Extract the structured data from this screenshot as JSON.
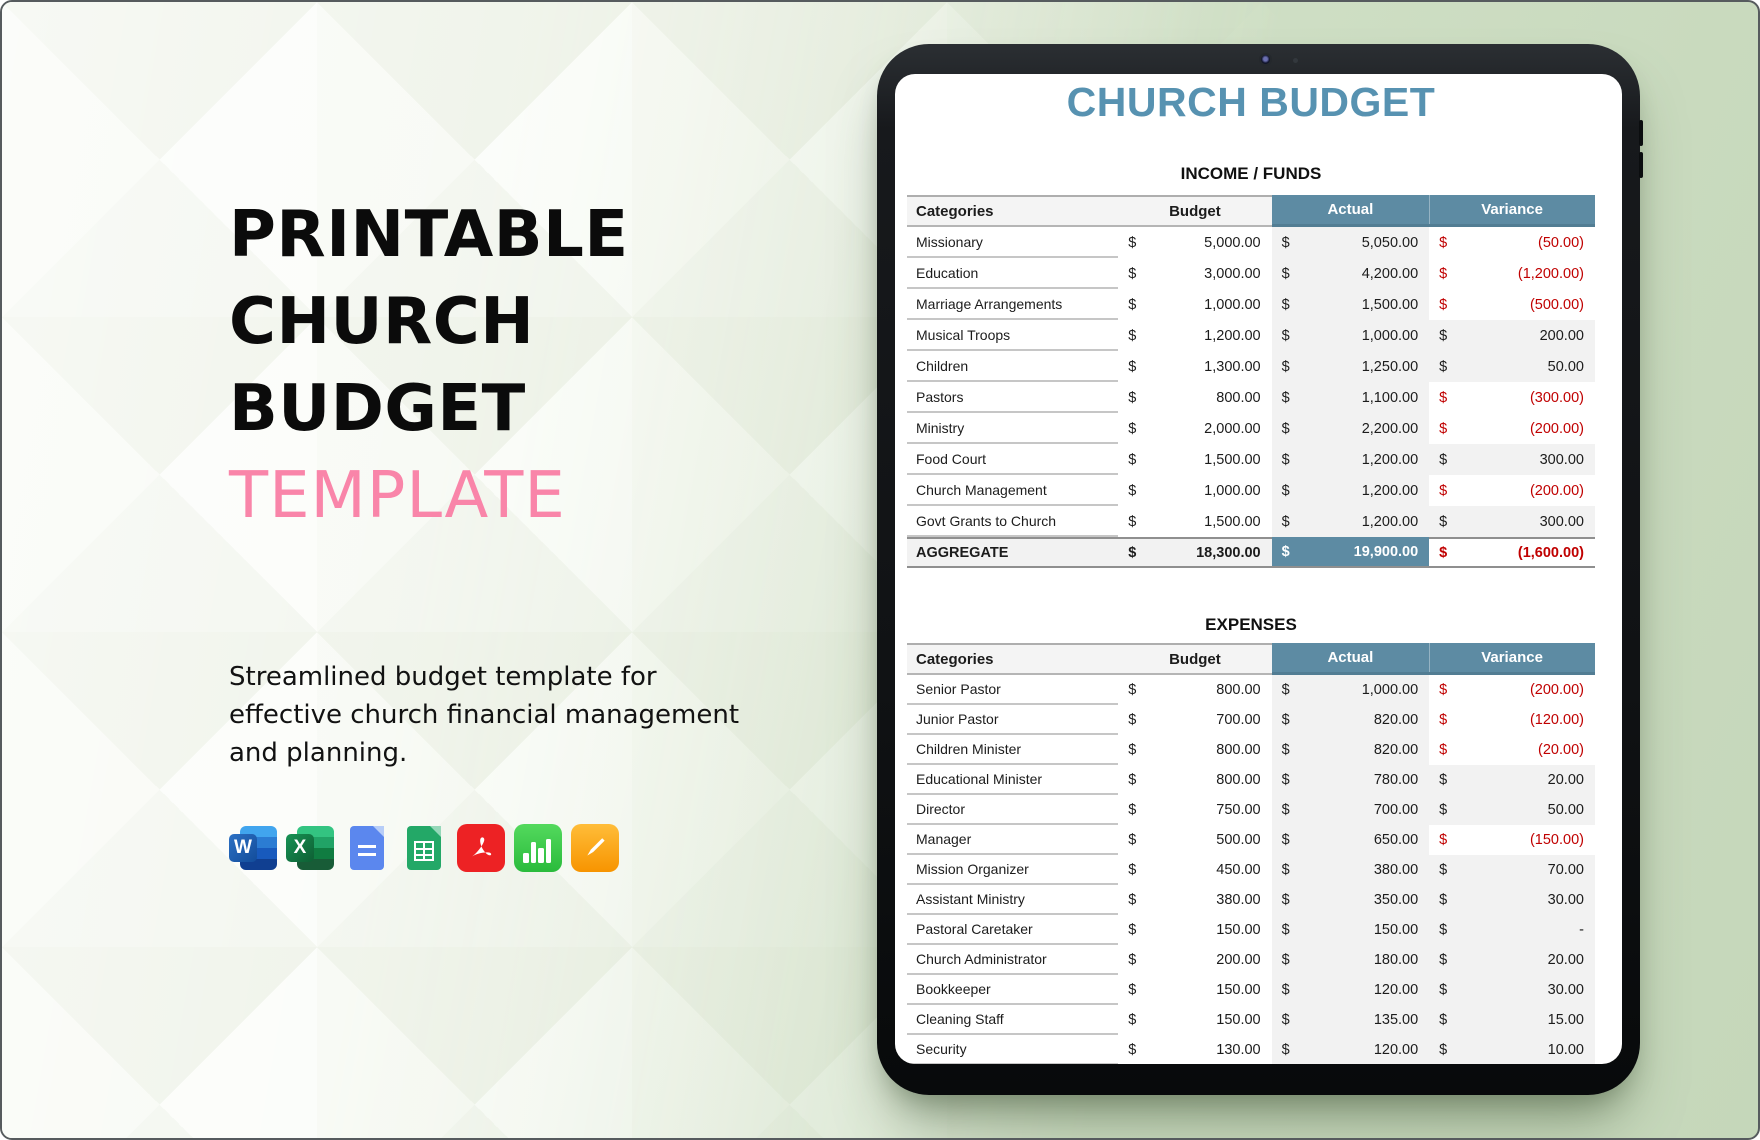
{
  "hero": {
    "title_lines": [
      "PRINTABLE",
      "CHURCH",
      "BUDGET"
    ],
    "title_accent": "TEMPLATE",
    "description": "Streamlined budget template for effective church financial management and planning.",
    "format_icons": [
      "ms-word",
      "ms-excel",
      "google-docs",
      "google-sheets",
      "pdf",
      "apple-numbers",
      "apple-pages"
    ],
    "ms_word_letter": "W",
    "ms_excel_letter": "X"
  },
  "sheet": {
    "title": "CHURCH BUDGET",
    "currency": "$",
    "income": {
      "section_title": "INCOME / FUNDS",
      "columns": [
        "Categories",
        "Budget",
        "Actual",
        "Variance"
      ],
      "rows": [
        {
          "category": "Missionary",
          "budget": "5,000.00",
          "actual": "5,050.00",
          "variance": "(50.00)",
          "negative": true
        },
        {
          "category": "Education",
          "budget": "3,000.00",
          "actual": "4,200.00",
          "variance": "(1,200.00)",
          "negative": true
        },
        {
          "category": "Marriage Arrangements",
          "budget": "1,000.00",
          "actual": "1,500.00",
          "variance": "(500.00)",
          "negative": true
        },
        {
          "category": "Musical Troops",
          "budget": "1,200.00",
          "actual": "1,000.00",
          "variance": "200.00",
          "negative": false
        },
        {
          "category": "Children",
          "budget": "1,300.00",
          "actual": "1,250.00",
          "variance": "50.00",
          "negative": false
        },
        {
          "category": "Pastors",
          "budget": "800.00",
          "actual": "1,100.00",
          "variance": "(300.00)",
          "negative": true
        },
        {
          "category": "Ministry",
          "budget": "2,000.00",
          "actual": "2,200.00",
          "variance": "(200.00)",
          "negative": true
        },
        {
          "category": "Food Court",
          "budget": "1,500.00",
          "actual": "1,200.00",
          "variance": "300.00",
          "negative": false
        },
        {
          "category": "Church Management",
          "budget": "1,000.00",
          "actual": "1,200.00",
          "variance": "(200.00)",
          "negative": true
        },
        {
          "category": "Govt Grants to Church",
          "budget": "1,500.00",
          "actual": "1,200.00",
          "variance": "300.00",
          "negative": false
        }
      ],
      "aggregate": {
        "label": "AGGREGATE",
        "budget": "18,300.00",
        "actual": "19,900.00",
        "variance": "(1,600.00)",
        "negative": true
      }
    },
    "expenses": {
      "section_title": "EXPENSES",
      "columns": [
        "Categories",
        "Budget",
        "Actual",
        "Variance"
      ],
      "rows": [
        {
          "category": "Senior Pastor",
          "budget": "800.00",
          "actual": "1,000.00",
          "variance": "(200.00)",
          "negative": true
        },
        {
          "category": "Junior Pastor",
          "budget": "700.00",
          "actual": "820.00",
          "variance": "(120.00)",
          "negative": true
        },
        {
          "category": "Children Minister",
          "budget": "800.00",
          "actual": "820.00",
          "variance": "(20.00)",
          "negative": true
        },
        {
          "category": "Educational Minister",
          "budget": "800.00",
          "actual": "780.00",
          "variance": "20.00",
          "negative": false
        },
        {
          "category": "Director",
          "budget": "750.00",
          "actual": "700.00",
          "variance": "50.00",
          "negative": false
        },
        {
          "category": "Manager",
          "budget": "500.00",
          "actual": "650.00",
          "variance": "(150.00)",
          "negative": true
        },
        {
          "category": "Mission Organizer",
          "budget": "450.00",
          "actual": "380.00",
          "variance": "70.00",
          "negative": false
        },
        {
          "category": "Assistant Ministry",
          "budget": "380.00",
          "actual": "350.00",
          "variance": "30.00",
          "negative": false
        },
        {
          "category": "Pastoral Caretaker",
          "budget": "150.00",
          "actual": "150.00",
          "variance": "-",
          "negative": false
        },
        {
          "category": "Church Administrator",
          "budget": "200.00",
          "actual": "180.00",
          "variance": "20.00",
          "negative": false
        },
        {
          "category": "Bookkeeper",
          "budget": "150.00",
          "actual": "120.00",
          "variance": "30.00",
          "negative": false
        },
        {
          "category": "Cleaning Staff",
          "budget": "150.00",
          "actual": "135.00",
          "variance": "15.00",
          "negative": false
        },
        {
          "category": "Security",
          "budget": "130.00",
          "actual": "120.00",
          "variance": "10.00",
          "negative": false
        }
      ]
    }
  },
  "colors": {
    "accent_blue": "#5D8BA3",
    "sheet_title_blue": "#5792B1",
    "negative_red": "#C00000",
    "accent_pink": "#F985A9",
    "cell_shade": "#F2F2F2",
    "background_green": "#CBDCC2"
  }
}
